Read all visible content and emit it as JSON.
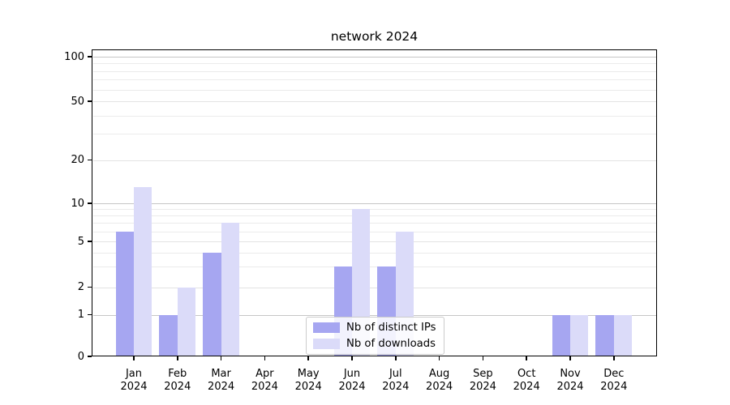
{
  "title": "network 2024",
  "chart_data": {
    "type": "bar",
    "title": "network 2024",
    "categories": [
      "Jan 2024",
      "Feb 2024",
      "Mar 2024",
      "Apr 2024",
      "May 2024",
      "Jun 2024",
      "Jul 2024",
      "Aug 2024",
      "Sep 2024",
      "Oct 2024",
      "Nov 2024",
      "Dec 2024"
    ],
    "series": [
      {
        "name": "Nb of distinct IPs",
        "color": "#a6a6f1",
        "values": [
          6,
          1,
          4,
          0,
          0,
          3,
          3,
          0,
          0,
          0,
          1,
          1
        ]
      },
      {
        "name": "Nb of downloads",
        "color": "#dbdbf9",
        "values": [
          13,
          2,
          7,
          0,
          0,
          9,
          6,
          0,
          0,
          0,
          1,
          1
        ]
      }
    ],
    "x_axis": {
      "months": [
        "Jan",
        "Feb",
        "Mar",
        "Apr",
        "May",
        "Jun",
        "Jul",
        "Aug",
        "Sep",
        "Oct",
        "Nov",
        "Dec"
      ],
      "year_line": "2024"
    },
    "y_axis": {
      "scale": "symlog-like (linear 0-1, log above)",
      "tick_labels": [
        "0",
        "1",
        "2",
        "5",
        "10",
        "20",
        "50",
        "100"
      ],
      "tick_values": [
        0,
        1,
        2,
        5,
        10,
        20,
        50,
        100
      ],
      "minor_gridline_values": [
        3,
        4,
        6,
        7,
        8,
        9,
        30,
        40,
        60,
        70,
        80,
        90
      ],
      "major_dark_gridline_values": [
        1,
        10,
        100
      ],
      "ylim": [
        0,
        110
      ]
    },
    "grid": "horizontal only, light gray minors, darker at 1/10/100",
    "legend_position": "lower center"
  },
  "legend": {
    "items": [
      {
        "label": "Nb of distinct IPs",
        "color": "#a6a6f1"
      },
      {
        "label": "Nb of downloads",
        "color": "#dbdbf9"
      }
    ]
  },
  "colors": {
    "series_dark": "#a6a6f1",
    "series_light": "#dbdbf9",
    "grid_major": "#c6c6c6",
    "grid_minor": "#ebebeb",
    "axis": "#000000",
    "background": "#ffffff"
  }
}
